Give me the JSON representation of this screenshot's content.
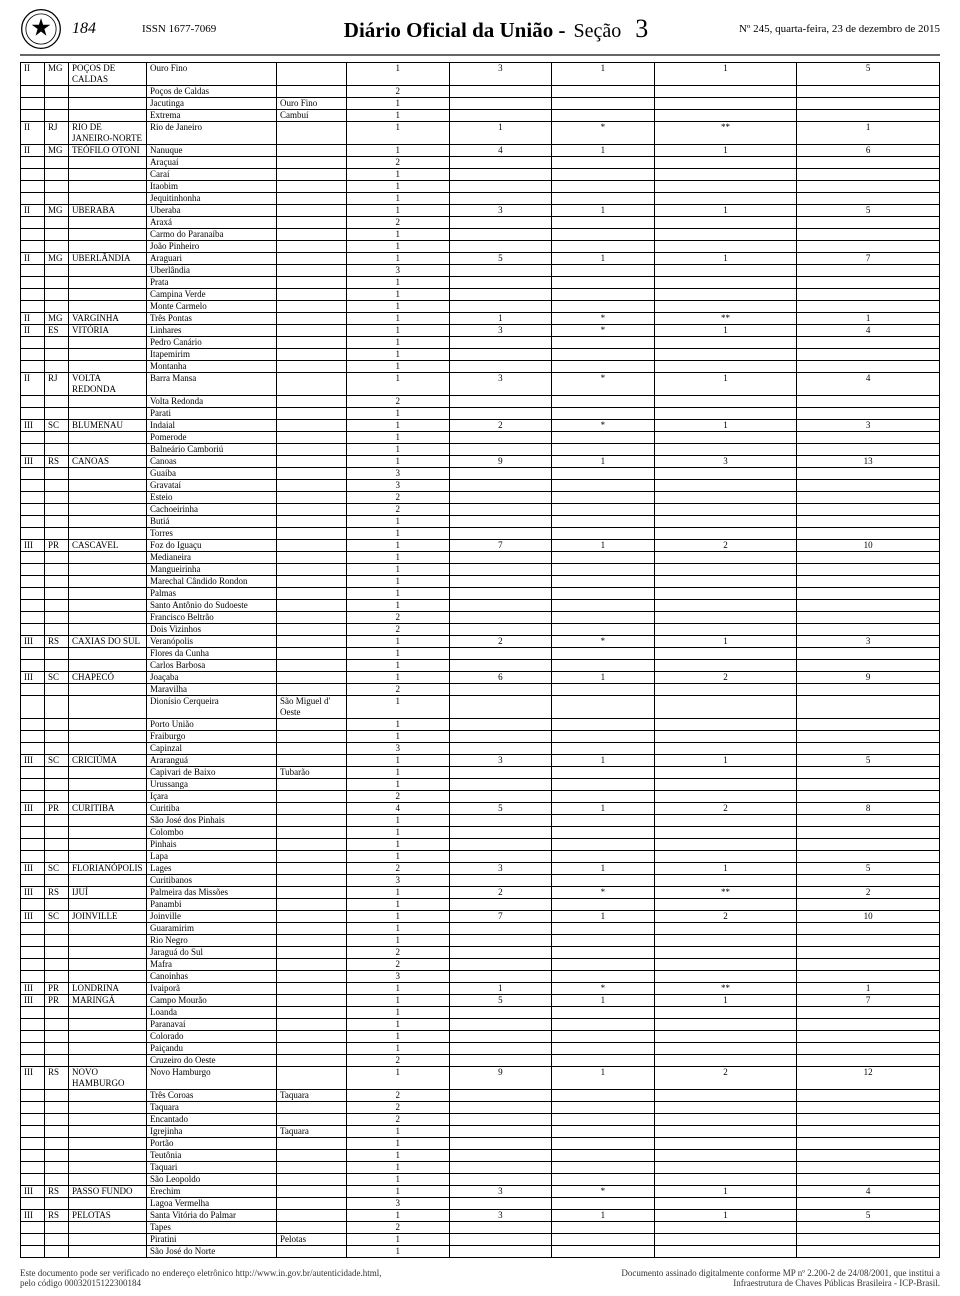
{
  "header": {
    "pageNum": "184",
    "issn": "ISSN 1677-7069",
    "titleMain": "Diário Oficial da União -",
    "titleSection": "Seção",
    "sectionNum": "3",
    "date": "Nº 245, quarta-feira, 23 de dezembro de 2015"
  },
  "columnWidths": [
    "c0",
    "c1",
    "c2",
    "c3",
    "c4",
    "c5",
    "c6",
    "c7",
    "c8",
    "c9"
  ],
  "rows": [
    [
      "II",
      "MG",
      "POÇOS DE CALDAS",
      "Ouro Fino",
      "",
      "1",
      "3",
      "1",
      "1",
      "5"
    ],
    [
      "",
      "",
      "",
      "Poços de Caldas",
      "",
      "2",
      "",
      "",
      "",
      ""
    ],
    [
      "",
      "",
      "",
      "Jacutinga",
      "Ouro Fino",
      "1",
      "",
      "",
      "",
      ""
    ],
    [
      "",
      "",
      "",
      "Extrema",
      "Cambuí",
      "1",
      "",
      "",
      "",
      ""
    ],
    [
      "II",
      "RJ",
      "RIO DE JANEIRO-NORTE",
      "Rio de Janeiro",
      "",
      "1",
      "1",
      "*",
      "**",
      "1"
    ],
    [
      "II",
      "MG",
      "TEÓFILO OTONI",
      "Nanuque",
      "",
      "1",
      "4",
      "1",
      "1",
      "6"
    ],
    [
      "",
      "",
      "",
      "Araçuaí",
      "",
      "2",
      "",
      "",
      "",
      ""
    ],
    [
      "",
      "",
      "",
      "Caraí",
      "",
      "1",
      "",
      "",
      "",
      ""
    ],
    [
      "",
      "",
      "",
      "Itaobim",
      "",
      "1",
      "",
      "",
      "",
      ""
    ],
    [
      "",
      "",
      "",
      "Jequitinhonha",
      "",
      "1",
      "",
      "",
      "",
      ""
    ],
    [
      "II",
      "MG",
      "UBERABA",
      "Uberaba",
      "",
      "1",
      "3",
      "1",
      "1",
      "5"
    ],
    [
      "",
      "",
      "",
      "Araxá",
      "",
      "2",
      "",
      "",
      "",
      ""
    ],
    [
      "",
      "",
      "",
      "Carmo do Paranaíba",
      "",
      "1",
      "",
      "",
      "",
      ""
    ],
    [
      "",
      "",
      "",
      "João Pinheiro",
      "",
      "1",
      "",
      "",
      "",
      ""
    ],
    [
      "II",
      "MG",
      "UBERLÂNDIA",
      "Araguari",
      "",
      "1",
      "5",
      "1",
      "1",
      "7"
    ],
    [
      "",
      "",
      "",
      "Uberlândia",
      "",
      "3",
      "",
      "",
      "",
      ""
    ],
    [
      "",
      "",
      "",
      "Prata",
      "",
      "1",
      "",
      "",
      "",
      ""
    ],
    [
      "",
      "",
      "",
      "Campina Verde",
      "",
      "1",
      "",
      "",
      "",
      ""
    ],
    [
      "",
      "",
      "",
      "Monte Carmelo",
      "",
      "1",
      "",
      "",
      "",
      ""
    ],
    [
      "II",
      "MG",
      "VARGINHA",
      "Três Pontas",
      "",
      "1",
      "1",
      "*",
      "**",
      "1"
    ],
    [
      "II",
      "ES",
      "VITÓRIA",
      "Linhares",
      "",
      "1",
      "3",
      "*",
      "1",
      "4"
    ],
    [
      "",
      "",
      "",
      "Pedro Canário",
      "",
      "1",
      "",
      "",
      "",
      ""
    ],
    [
      "",
      "",
      "",
      "Itapemirim",
      "",
      "1",
      "",
      "",
      "",
      ""
    ],
    [
      "",
      "",
      "",
      "Montanha",
      "",
      "1",
      "",
      "",
      "",
      ""
    ],
    [
      "II",
      "RJ",
      "VOLTA REDONDA",
      "Barra Mansa",
      "",
      "1",
      "3",
      "*",
      "1",
      "4"
    ],
    [
      "",
      "",
      "",
      "Volta Redonda",
      "",
      "2",
      "",
      "",
      "",
      ""
    ],
    [
      "",
      "",
      "",
      "Parati",
      "",
      "1",
      "",
      "",
      "",
      ""
    ],
    [
      "III",
      "SC",
      "BLUMENAU",
      "Indaial",
      "",
      "1",
      "2",
      "*",
      "1",
      "3"
    ],
    [
      "",
      "",
      "",
      "Pomerode",
      "",
      "1",
      "",
      "",
      "",
      ""
    ],
    [
      "",
      "",
      "",
      "Balneário Camboriú",
      "",
      "1",
      "",
      "",
      "",
      ""
    ],
    [
      "III",
      "RS",
      "CANOAS",
      "Canoas",
      "",
      "1",
      "9",
      "1",
      "3",
      "13"
    ],
    [
      "",
      "",
      "",
      "Guaíba",
      "",
      "3",
      "",
      "",
      "",
      ""
    ],
    [
      "",
      "",
      "",
      "Gravataí",
      "",
      "3",
      "",
      "",
      "",
      ""
    ],
    [
      "",
      "",
      "",
      "Esteio",
      "",
      "2",
      "",
      "",
      "",
      ""
    ],
    [
      "",
      "",
      "",
      "Cachoeirinha",
      "",
      "2",
      "",
      "",
      "",
      ""
    ],
    [
      "",
      "",
      "",
      "Butiá",
      "",
      "1",
      "",
      "",
      "",
      ""
    ],
    [
      "",
      "",
      "",
      "Torres",
      "",
      "1",
      "",
      "",
      "",
      ""
    ],
    [
      "III",
      "PR",
      "CASCAVEL",
      "Foz do Iguaçu",
      "",
      "1",
      "7",
      "1",
      "2",
      "10"
    ],
    [
      "",
      "",
      "",
      "Medianeira",
      "",
      "1",
      "",
      "",
      "",
      ""
    ],
    [
      "",
      "",
      "",
      "Mangueirinha",
      "",
      "1",
      "",
      "",
      "",
      ""
    ],
    [
      "",
      "",
      "",
      "Marechal Cândido Rondon",
      "",
      "1",
      "",
      "",
      "",
      ""
    ],
    [
      "",
      "",
      "",
      "Palmas",
      "",
      "1",
      "",
      "",
      "",
      ""
    ],
    [
      "",
      "",
      "",
      "Santo Antônio do Sudoeste",
      "",
      "1",
      "",
      "",
      "",
      ""
    ],
    [
      "",
      "",
      "",
      "Francisco Beltrão",
      "",
      "2",
      "",
      "",
      "",
      ""
    ],
    [
      "",
      "",
      "",
      "Dois Vizinhos",
      "",
      "2",
      "",
      "",
      "",
      ""
    ],
    [
      "III",
      "RS",
      "CAXIAS DO SUL",
      "Veranópolis",
      "",
      "1",
      "2",
      "*",
      "1",
      "3"
    ],
    [
      "",
      "",
      "",
      "Flores da Cunha",
      "",
      "1",
      "",
      "",
      "",
      ""
    ],
    [
      "",
      "",
      "",
      "Carlos Barbosa",
      "",
      "1",
      "",
      "",
      "",
      ""
    ],
    [
      "III",
      "SC",
      "CHAPECÓ",
      "Joaçaba",
      "",
      "1",
      "6",
      "1",
      "2",
      "9"
    ],
    [
      "",
      "",
      "",
      "Maravilha",
      "",
      "2",
      "",
      "",
      "",
      ""
    ],
    [
      "",
      "",
      "",
      "Dionísio Cerqueira",
      "São Miguel d' Oeste",
      "1",
      "",
      "",
      "",
      ""
    ],
    [
      "",
      "",
      "",
      "Porto União",
      "",
      "1",
      "",
      "",
      "",
      ""
    ],
    [
      "",
      "",
      "",
      "Fraiburgo",
      "",
      "1",
      "",
      "",
      "",
      ""
    ],
    [
      "",
      "",
      "",
      "Capinzal",
      "",
      "3",
      "",
      "",
      "",
      ""
    ],
    [
      "III",
      "SC",
      "CRICIÚMA",
      "Araranguá",
      "",
      "1",
      "3",
      "1",
      "1",
      "5"
    ],
    [
      "",
      "",
      "",
      "Capivari de Baixo",
      "Tubarão",
      "1",
      "",
      "",
      "",
      ""
    ],
    [
      "",
      "",
      "",
      "Urussanga",
      "",
      "1",
      "",
      "",
      "",
      ""
    ],
    [
      "",
      "",
      "",
      "Içara",
      "",
      "2",
      "",
      "",
      "",
      ""
    ],
    [
      "III",
      "PR",
      "CURITIBA",
      "Curitiba",
      "",
      "4",
      "5",
      "1",
      "2",
      "8"
    ],
    [
      "",
      "",
      "",
      "São José dos Pinhais",
      "",
      "1",
      "",
      "",
      "",
      ""
    ],
    [
      "",
      "",
      "",
      "Colombo",
      "",
      "1",
      "",
      "",
      "",
      ""
    ],
    [
      "",
      "",
      "",
      "Pinhais",
      "",
      "1",
      "",
      "",
      "",
      ""
    ],
    [
      "",
      "",
      "",
      "Lapa",
      "",
      "1",
      "",
      "",
      "",
      ""
    ],
    [
      "III",
      "SC",
      "FLORIANÓPOLIS",
      "Lages",
      "",
      "2",
      "3",
      "1",
      "1",
      "5"
    ],
    [
      "",
      "",
      "",
      "Curitibanos",
      "",
      "3",
      "",
      "",
      "",
      ""
    ],
    [
      "III",
      "RS",
      "IJUÍ",
      "Palmeira das Missões",
      "",
      "1",
      "2",
      "*",
      "**",
      "2"
    ],
    [
      "",
      "",
      "",
      "Panambi",
      "",
      "1",
      "",
      "",
      "",
      ""
    ],
    [
      "III",
      "SC",
      "JOINVILLE",
      "Joinville",
      "",
      "1",
      "7",
      "1",
      "2",
      "10"
    ],
    [
      "",
      "",
      "",
      "Guaramirim",
      "",
      "1",
      "",
      "",
      "",
      ""
    ],
    [
      "",
      "",
      "",
      "Rio Negro",
      "",
      "1",
      "",
      "",
      "",
      ""
    ],
    [
      "",
      "",
      "",
      "Jaraguá do Sul",
      "",
      "2",
      "",
      "",
      "",
      ""
    ],
    [
      "",
      "",
      "",
      "Mafra",
      "",
      "2",
      "",
      "",
      "",
      ""
    ],
    [
      "",
      "",
      "",
      "Canoinhas",
      "",
      "3",
      "",
      "",
      "",
      ""
    ],
    [
      "III",
      "PR",
      "LONDRINA",
      "Ivaiporã",
      "",
      "1",
      "1",
      "*",
      "**",
      "1"
    ],
    [
      "III",
      "PR",
      "MARINGÁ",
      "Campo Mourão",
      "",
      "1",
      "5",
      "1",
      "1",
      "7"
    ],
    [
      "",
      "",
      "",
      "Loanda",
      "",
      "1",
      "",
      "",
      "",
      ""
    ],
    [
      "",
      "",
      "",
      "Paranavaí",
      "",
      "1",
      "",
      "",
      "",
      ""
    ],
    [
      "",
      "",
      "",
      "Colorado",
      "",
      "1",
      "",
      "",
      "",
      ""
    ],
    [
      "",
      "",
      "",
      "Paiçandu",
      "",
      "1",
      "",
      "",
      "",
      ""
    ],
    [
      "",
      "",
      "",
      "Cruzeiro do Oeste",
      "",
      "2",
      "",
      "",
      "",
      ""
    ],
    [
      "III",
      "RS",
      "NOVO HAMBURGO",
      "Novo Hamburgo",
      "",
      "1",
      "9",
      "1",
      "2",
      "12"
    ],
    [
      "",
      "",
      "",
      "Três Coroas",
      "Taquara",
      "2",
      "",
      "",
      "",
      ""
    ],
    [
      "",
      "",
      "",
      "Taquara",
      "",
      "2",
      "",
      "",
      "",
      ""
    ],
    [
      "",
      "",
      "",
      "Encantado",
      "",
      "2",
      "",
      "",
      "",
      ""
    ],
    [
      "",
      "",
      "",
      "Igrejinha",
      "Taquara",
      "1",
      "",
      "",
      "",
      ""
    ],
    [
      "",
      "",
      "",
      "Portão",
      "",
      "1",
      "",
      "",
      "",
      ""
    ],
    [
      "",
      "",
      "",
      "Teutônia",
      "",
      "1",
      "",
      "",
      "",
      ""
    ],
    [
      "",
      "",
      "",
      "Taquari",
      "",
      "1",
      "",
      "",
      "",
      ""
    ],
    [
      "",
      "",
      "",
      "São Leopoldo",
      "",
      "1",
      "",
      "",
      "",
      ""
    ],
    [
      "III",
      "RS",
      "PASSO FUNDO",
      "Erechim",
      "",
      "1",
      "3",
      "*",
      "1",
      "4"
    ],
    [
      "",
      "",
      "",
      "Lagoa Vermelha",
      "",
      "3",
      "",
      "",
      "",
      ""
    ],
    [
      "III",
      "RS",
      "PELOTAS",
      "Santa Vitória do Palmar",
      "",
      "1",
      "3",
      "1",
      "1",
      "5"
    ],
    [
      "",
      "",
      "",
      "Tapes",
      "",
      "2",
      "",
      "",
      "",
      ""
    ],
    [
      "",
      "",
      "",
      "Piratini",
      "Pelotas",
      "1",
      "",
      "",
      "",
      ""
    ],
    [
      "",
      "",
      "",
      "São José do Norte",
      "",
      "1",
      "",
      "",
      "",
      ""
    ]
  ],
  "footer": {
    "leftLine1": "Este documento pode ser verificado no endereço eletrônico http://www.in.gov.br/autenticidade.html,",
    "leftLine2": "pelo código 00032015122300184",
    "rightLine1": "Documento assinado digitalmente conforme MP nº 2.200-2 de 24/08/2001, que institui a",
    "rightLine2": "Infraestrutura de Chaves Públicas Brasileira - ICP-Brasil."
  }
}
